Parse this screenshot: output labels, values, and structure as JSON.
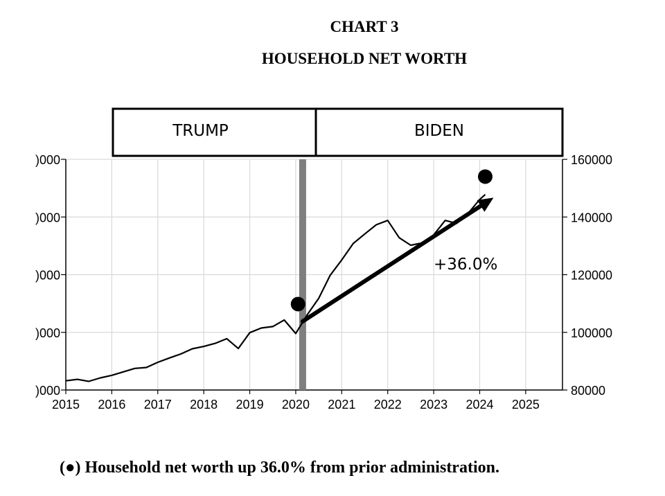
{
  "chart_data": {
    "type": "line",
    "title": "CHART 3",
    "subtitle": "HOUSEHOLD NET WORTH",
    "xlim": [
      2015,
      2025.8
    ],
    "ylim": [
      80000,
      160000
    ],
    "x_ticks": [
      "2015",
      "2016",
      "2017",
      "2018",
      "2019",
      "2020",
      "2021",
      "2022",
      "2023",
      "2024",
      "2025"
    ],
    "y_ticks_right": [
      "160000",
      "140000",
      "120000",
      "100000",
      "80000"
    ],
    "y_ticks_left": [
      ")000",
      ")000",
      ")000",
      ")000",
      ")000"
    ],
    "grid": true,
    "series": [
      {
        "x": [
          2015.0,
          2015.25,
          2015.5,
          2015.75,
          2016.0,
          2016.25,
          2016.5,
          2016.75,
          2017.0,
          2017.25,
          2017.5,
          2017.75,
          2018.0,
          2018.25,
          2018.5,
          2018.75,
          2019.0,
          2019.25,
          2019.5,
          2019.75,
          2020.0,
          2020.25,
          2020.5,
          2020.75,
          2021.0,
          2021.25,
          2021.5,
          2021.75,
          2022.0,
          2022.25,
          2022.5,
          2022.75,
          2023.0,
          2023.25,
          2023.5,
          2023.75,
          2024.0,
          2024.12
        ],
        "values": [
          83200,
          83700,
          83000,
          84200,
          85100,
          86300,
          87500,
          87800,
          89600,
          91100,
          92500,
          94300,
          95100,
          96200,
          97800,
          94400,
          99900,
          101500,
          102000,
          104300,
          99600,
          106100,
          111800,
          119800,
          125100,
          130800,
          134100,
          137300,
          138800,
          132800,
          130200,
          131000,
          133800,
          138800,
          137800,
          141300,
          146100,
          147800
        ]
      }
    ],
    "markers": [
      {
        "x": 2020.05,
        "y": 109800
      },
      {
        "x": 2024.12,
        "y": 154000
      }
    ],
    "arrow": {
      "from": {
        "x": 2020.15,
        "y": 103800
      },
      "to": {
        "x": 2024.3,
        "y": 146700
      }
    },
    "administrations": [
      {
        "label": "TRUMP"
      },
      {
        "label": "BIDEN"
      }
    ],
    "event_line_x": 2020.15,
    "annotation": "+36.0%",
    "footnote": "(●) Household net worth up 36.0% from prior administration.",
    "colors": {
      "line": "#000000",
      "grid": "#d9d9d9",
      "event_bar": "#7f7f7f",
      "axis": "#000000"
    }
  }
}
